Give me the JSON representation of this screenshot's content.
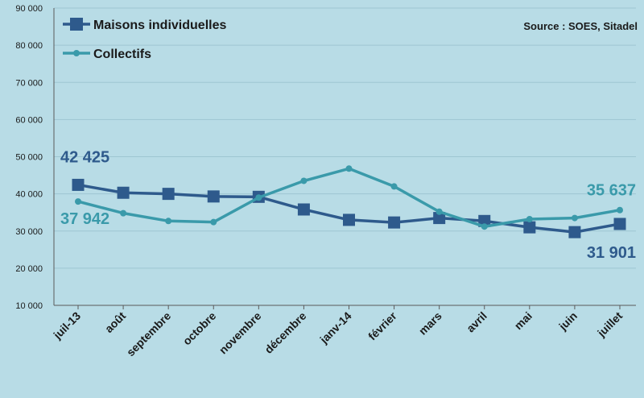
{
  "chart_data": {
    "type": "line",
    "categories": [
      "juil-13",
      "août",
      "septembre",
      "octobre",
      "novembre",
      "décembre",
      "janv-14",
      "février",
      "mars",
      "avril",
      "mai",
      "juin",
      "juillet"
    ],
    "series": [
      {
        "name": "Maisons individuelles",
        "color": "#2e5a8c",
        "marker": "square",
        "values": [
          42425,
          40300,
          40000,
          39300,
          39200,
          35800,
          33000,
          32300,
          33500,
          32700,
          31000,
          29700,
          31901
        ]
      },
      {
        "name": "Collectifs",
        "color": "#3a9aaa",
        "marker": "circle",
        "values": [
          37942,
          34800,
          32700,
          32400,
          39000,
          43500,
          46800,
          42000,
          35200,
          31200,
          33200,
          33500,
          35637
        ]
      }
    ],
    "ylim": [
      10000,
      90000
    ],
    "yticks": [
      10000,
      20000,
      30000,
      40000,
      50000,
      60000,
      70000,
      80000,
      90000
    ],
    "ytick_labels": [
      "10 000",
      "20 000",
      "30 000",
      "40 000",
      "50 000",
      "60 000",
      "70 000",
      "80 000",
      "90 000"
    ],
    "grid": true,
    "legend_position": "top-left",
    "source": "Source : SOES, Sitadel",
    "annotations": [
      {
        "text": "42 425",
        "series": 0,
        "index": 0,
        "color": "#2e5a8c"
      },
      {
        "text": "37 942",
        "series": 1,
        "index": 0,
        "color": "#3a9aaa"
      },
      {
        "text": "35 637",
        "series": 1,
        "index": 12,
        "color": "#3a9aaa"
      },
      {
        "text": "31 901",
        "series": 0,
        "index": 12,
        "color": "#2e5a8c"
      }
    ]
  }
}
